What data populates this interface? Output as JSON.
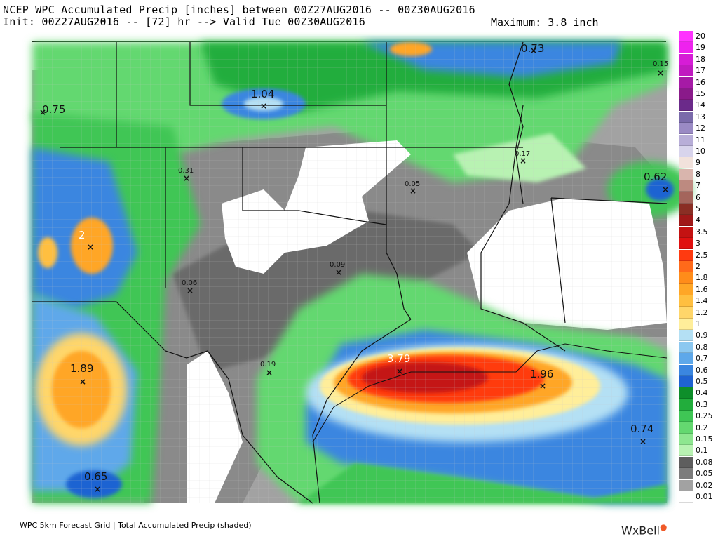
{
  "header": {
    "line1": "NCEP WPC Accumulated Precip [inches] between 00Z27AUG2016 -- 00Z30AUG2016",
    "line2": "Init: 00Z27AUG2016 -- [72] hr --> Valid Tue 00Z30AUG2016",
    "maximum": "Maximum: 3.8 inch"
  },
  "footer": {
    "caption": "WPC 5km Forecast Grid | Total Accumulated Precip (shaded)",
    "brand": "WxBell"
  },
  "legend": [
    {
      "label": "20",
      "color": "#ff33ff"
    },
    {
      "label": "19",
      "color": "#ee22ee"
    },
    {
      "label": "18",
      "color": "#d61cd6"
    },
    {
      "label": "17",
      "color": "#c01ac0"
    },
    {
      "label": "16",
      "color": "#a61aa6"
    },
    {
      "label": "15",
      "color": "#8a1a8a"
    },
    {
      "label": "14",
      "color": "#6b2a8a"
    },
    {
      "label": "13",
      "color": "#7a6aaa"
    },
    {
      "label": "12",
      "color": "#9a8ac4"
    },
    {
      "label": "11",
      "color": "#b8aed8"
    },
    {
      "label": "10",
      "color": "#d8d4ec"
    },
    {
      "label": "9",
      "color": "#f2e2dc"
    },
    {
      "label": "8",
      "color": "#d9b5ad"
    },
    {
      "label": "7",
      "color": "#bd8a80"
    },
    {
      "label": "6",
      "color": "#a4655c"
    },
    {
      "label": "5",
      "color": "#8a2e24"
    },
    {
      "label": "4",
      "color": "#a01818"
    },
    {
      "label": "3.5",
      "color": "#c41212"
    },
    {
      "label": "3",
      "color": "#e01010"
    },
    {
      "label": "2.5",
      "color": "#ff3a10"
    },
    {
      "label": "2",
      "color": "#ff6a1a"
    },
    {
      "label": "1.8",
      "color": "#ff8c1a"
    },
    {
      "label": "1.6",
      "color": "#ffa626"
    },
    {
      "label": "1.4",
      "color": "#ffbf40"
    },
    {
      "label": "1.2",
      "color": "#ffd66a"
    },
    {
      "label": "1",
      "color": "#ffee9a"
    },
    {
      "label": "0.9",
      "color": "#b4e0f4"
    },
    {
      "label": "0.8",
      "color": "#8cc8f0"
    },
    {
      "label": "0.7",
      "color": "#5ea8ea"
    },
    {
      "label": "0.6",
      "color": "#3a86e0"
    },
    {
      "label": "0.5",
      "color": "#1f63d2"
    },
    {
      "label": "0.4",
      "color": "#0e8e2a"
    },
    {
      "label": "0.3",
      "color": "#22ad3c"
    },
    {
      "label": "0.25",
      "color": "#3fc655"
    },
    {
      "label": "0.2",
      "color": "#64d870"
    },
    {
      "label": "0.15",
      "color": "#8ee690"
    },
    {
      "label": "0.1",
      "color": "#b8f2b2"
    },
    {
      "label": "0.08",
      "color": "#5e5e5e"
    },
    {
      "label": "0.05",
      "color": "#7c7c7c"
    },
    {
      "label": "0.02",
      "color": "#a2a2a2"
    },
    {
      "label": "0.01",
      "color": "#ffffff"
    }
  ],
  "map_labels": [
    {
      "id": "v075",
      "text": "0.75"
    },
    {
      "id": "v104",
      "text": "1.04"
    },
    {
      "id": "v073",
      "text": "0.73"
    },
    {
      "id": "v015",
      "text": "0.15"
    },
    {
      "id": "v017",
      "text": "0.17"
    },
    {
      "id": "v062",
      "text": "0.62"
    },
    {
      "id": "v031",
      "text": "0.31"
    },
    {
      "id": "v005",
      "text": "0.05"
    },
    {
      "id": "v009",
      "text": "0.09"
    },
    {
      "id": "v006",
      "text": "0.06"
    },
    {
      "id": "v019",
      "text": "0.19"
    },
    {
      "id": "v379",
      "text": "3.79"
    },
    {
      "id": "v196",
      "text": "1.96"
    },
    {
      "id": "v074",
      "text": "0.74"
    },
    {
      "id": "v189",
      "text": "1.89"
    },
    {
      "id": "v065",
      "text": "0.65"
    },
    {
      "id": "v2",
      "text": "2"
    }
  ]
}
